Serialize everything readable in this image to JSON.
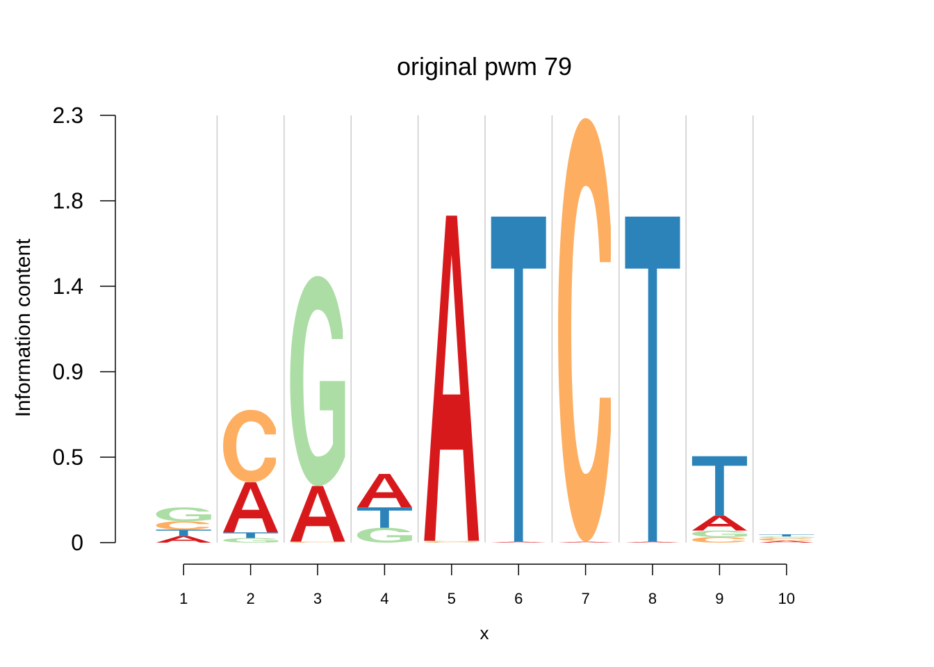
{
  "chart_data": {
    "type": "sequence-logo",
    "title": "original pwm 79",
    "xlabel": "x",
    "ylabel": "Information content",
    "ylim": [
      0,
      2.3
    ],
    "y_ticks": [
      "0",
      "0.5",
      "0.9",
      "1.4",
      "1.8",
      "2.3"
    ],
    "y_tick_values": [
      0,
      0.46,
      0.92,
      1.38,
      1.84,
      2.3
    ],
    "positions": [
      "1",
      "2",
      "3",
      "4",
      "5",
      "6",
      "7",
      "8",
      "9",
      "10"
    ],
    "grid": true,
    "colors": {
      "A": "#d7191c",
      "C": "#fdae61",
      "G": "#abdda4",
      "T": "#2b83ba"
    },
    "stacks": [
      [
        {
          "letter": "A",
          "height": 0.035
        },
        {
          "letter": "T",
          "height": 0.035
        },
        {
          "letter": "C",
          "height": 0.045
        },
        {
          "letter": "G",
          "height": 0.075
        }
      ],
      [
        {
          "letter": "G",
          "height": 0.025
        },
        {
          "letter": "T",
          "height": 0.03
        },
        {
          "letter": "A",
          "height": 0.27
        },
        {
          "letter": "C",
          "height": 0.39
        }
      ],
      [
        {
          "letter": "C",
          "height": 0.005
        },
        {
          "letter": "A",
          "height": 0.3
        },
        {
          "letter": "G",
          "height": 1.13
        }
      ],
      [
        {
          "letter": "G",
          "height": 0.08
        },
        {
          "letter": "T",
          "height": 0.11
        },
        {
          "letter": "A",
          "height": 0.18
        }
      ],
      [
        {
          "letter": "C",
          "height": 0.005
        },
        {
          "letter": "G",
          "height": 0.005
        },
        {
          "letter": "A",
          "height": 1.75
        }
      ],
      [
        {
          "letter": "A",
          "height": 0.005
        },
        {
          "letter": "T",
          "height": 1.75
        }
      ],
      [
        {
          "letter": "A",
          "height": 0.005
        },
        {
          "letter": "C",
          "height": 2.28
        }
      ],
      [
        {
          "letter": "A",
          "height": 0.005
        },
        {
          "letter": "T",
          "height": 1.75
        }
      ],
      [
        {
          "letter": "C",
          "height": 0.03
        },
        {
          "letter": "G",
          "height": 0.035
        },
        {
          "letter": "A",
          "height": 0.08
        },
        {
          "letter": "T",
          "height": 0.32
        }
      ],
      [
        {
          "letter": "A",
          "height": 0.01
        },
        {
          "letter": "C",
          "height": 0.015
        },
        {
          "letter": "G",
          "height": 0.008
        },
        {
          "letter": "T",
          "height": 0.012
        }
      ]
    ]
  }
}
